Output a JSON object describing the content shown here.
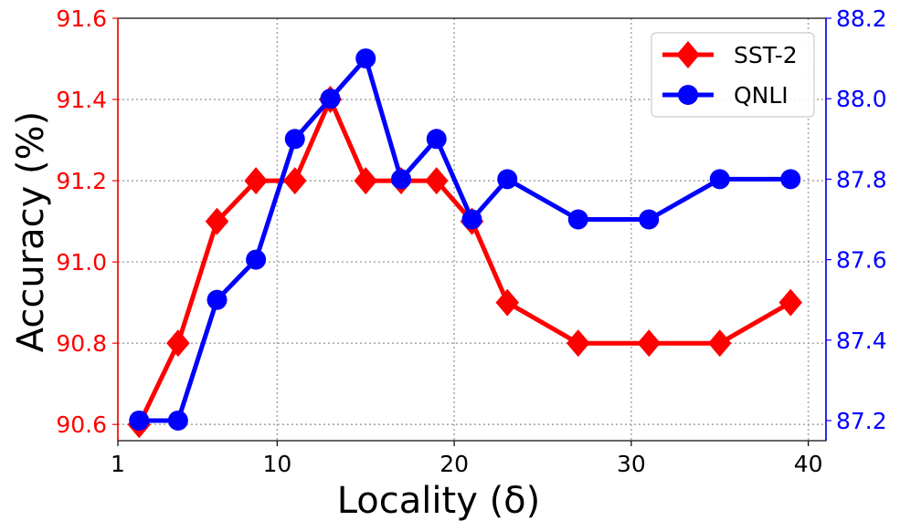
{
  "chart_data": {
    "type": "line",
    "x": [
      2.2,
      4.4,
      6.6,
      8.8,
      11,
      13,
      15,
      17,
      19,
      21,
      23,
      27,
      31,
      35,
      39
    ],
    "series": [
      {
        "name": "SST-2",
        "axis": "left",
        "color": "#ff0000",
        "marker": "diamond",
        "values": [
          90.6,
          90.8,
          91.1,
          91.2,
          91.2,
          91.4,
          91.2,
          91.2,
          91.2,
          91.1,
          90.9,
          90.8,
          90.8,
          90.8,
          90.9
        ]
      },
      {
        "name": "QNLI",
        "axis": "right",
        "color": "#0000ff",
        "marker": "circle",
        "values": [
          87.2,
          87.2,
          87.5,
          87.6,
          87.9,
          88.0,
          88.1,
          87.8,
          87.9,
          87.7,
          87.8,
          87.7,
          87.7,
          87.8,
          87.8
        ]
      }
    ],
    "xlabel": "Locality (δ)",
    "ylabel_left": "Accuracy (%)",
    "ylabel_right": "",
    "xlim": [
      1,
      41
    ],
    "ylim_left": [
      90.56,
      91.6
    ],
    "ylim_right": [
      87.15,
      88.2
    ],
    "x_ticks": [
      "1",
      "10",
      "20",
      "30",
      "40"
    ],
    "y_left_ticks": [
      "90.6",
      "90.8",
      "91.0",
      "91.2",
      "91.4",
      "91.6"
    ],
    "y_right_ticks": [
      "87.2",
      "87.4",
      "87.6",
      "87.8",
      "88.0",
      "88.2"
    ],
    "left_axis_color": "#ff0000",
    "right_axis_color": "#0000ff",
    "grid": true,
    "legend_position": "top-right"
  }
}
